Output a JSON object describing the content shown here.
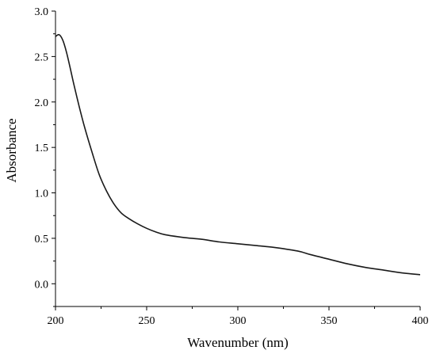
{
  "chart_data": {
    "type": "line",
    "title": "",
    "xlabel": "Wavenumber (nm)",
    "ylabel": "Absorbance",
    "xlim": [
      200,
      400
    ],
    "ylim": [
      -0.25,
      3.0
    ],
    "xticks": [
      200,
      250,
      300,
      350,
      400
    ],
    "yticks": [
      0.0,
      0.5,
      1.0,
      1.5,
      2.0,
      2.5,
      3.0
    ],
    "xtick_labels": [
      "200",
      "250",
      "300",
      "350",
      "400"
    ],
    "ytick_labels": [
      "0.0",
      "0.5",
      "1.0",
      "1.5",
      "2.0",
      "2.5",
      "3.0"
    ],
    "grid": false,
    "line_color": "#1a1a1a",
    "series": [
      {
        "x": [
          200,
          202,
          204,
          206,
          208,
          210,
          213,
          216,
          220,
          224,
          228,
          232,
          236,
          240,
          245,
          250,
          255,
          260,
          270,
          280,
          290,
          300,
          310,
          320,
          330,
          335,
          340,
          350,
          360,
          370,
          380,
          390,
          400
        ],
        "y": [
          2.72,
          2.74,
          2.68,
          2.55,
          2.38,
          2.2,
          1.95,
          1.72,
          1.45,
          1.2,
          1.02,
          0.88,
          0.78,
          0.72,
          0.66,
          0.61,
          0.57,
          0.54,
          0.51,
          0.49,
          0.46,
          0.44,
          0.42,
          0.4,
          0.37,
          0.35,
          0.32,
          0.27,
          0.22,
          0.18,
          0.15,
          0.12,
          0.1
        ]
      }
    ]
  }
}
